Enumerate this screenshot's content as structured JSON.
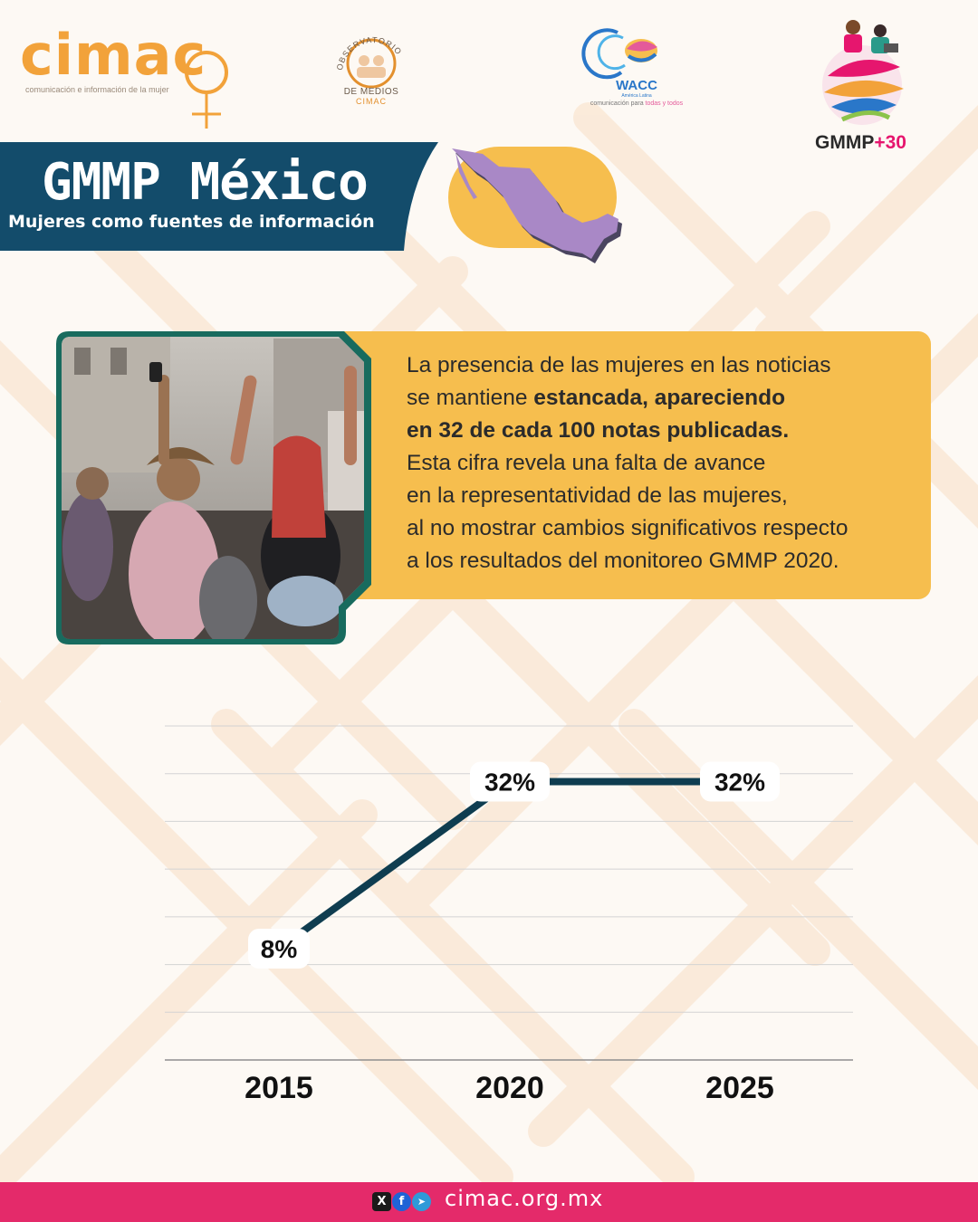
{
  "logos": {
    "cimac": {
      "word": "cimac",
      "tagline": "comunicación e información de la mujer"
    },
    "observatorio": {
      "arc_text": "OBSERVATORIO",
      "line1": "DE MEDIOS",
      "line2": "CIMAC"
    },
    "wacc": {
      "name": "WACC",
      "sub": "América Latina",
      "tagline_pre": "comunicación para ",
      "tagline_hl": "todas y todos"
    },
    "gmmp": {
      "name": "GMMP",
      "plus": "+30"
    }
  },
  "header": {
    "title": "GMMP México",
    "subtitle": "Mujeres como fuentes de información"
  },
  "info": {
    "line1": "La presencia de las mujeres en las noticias",
    "line2_pre": "se mantiene ",
    "line2_bold": "estancada, apareciendo",
    "line3_bold": "en 32 de cada 100 notas publicadas.",
    "line4": "Esta cifra revela una falta de avance",
    "line5": "en la representatividad de las mujeres,",
    "line6": "al no mostrar cambios significativos respecto",
    "line7": "a los resultados del monitoreo GMMP 2020."
  },
  "chart_data": {
    "type": "line",
    "categories": [
      "2015",
      "2020",
      "2025"
    ],
    "values": [
      8,
      32,
      32
    ],
    "data_labels": [
      "8%",
      "32%",
      "32%"
    ],
    "grid": true,
    "line_color": "#0f3d50"
  },
  "colors": {
    "accent_orange": "#f2a23a",
    "banner_navy": "#134c6b",
    "info_yellow": "#f6be4e",
    "photo_frame_green": "#186b5e",
    "map_purple": "#a988c6",
    "footer_pink": "#e42a6a"
  },
  "footer": {
    "icons": [
      "x-icon",
      "facebook-icon",
      "telegram-icon"
    ],
    "x_glyph": "X",
    "fb_glyph": "f",
    "tg_glyph": "➤",
    "url": "cimac.org.mx"
  }
}
